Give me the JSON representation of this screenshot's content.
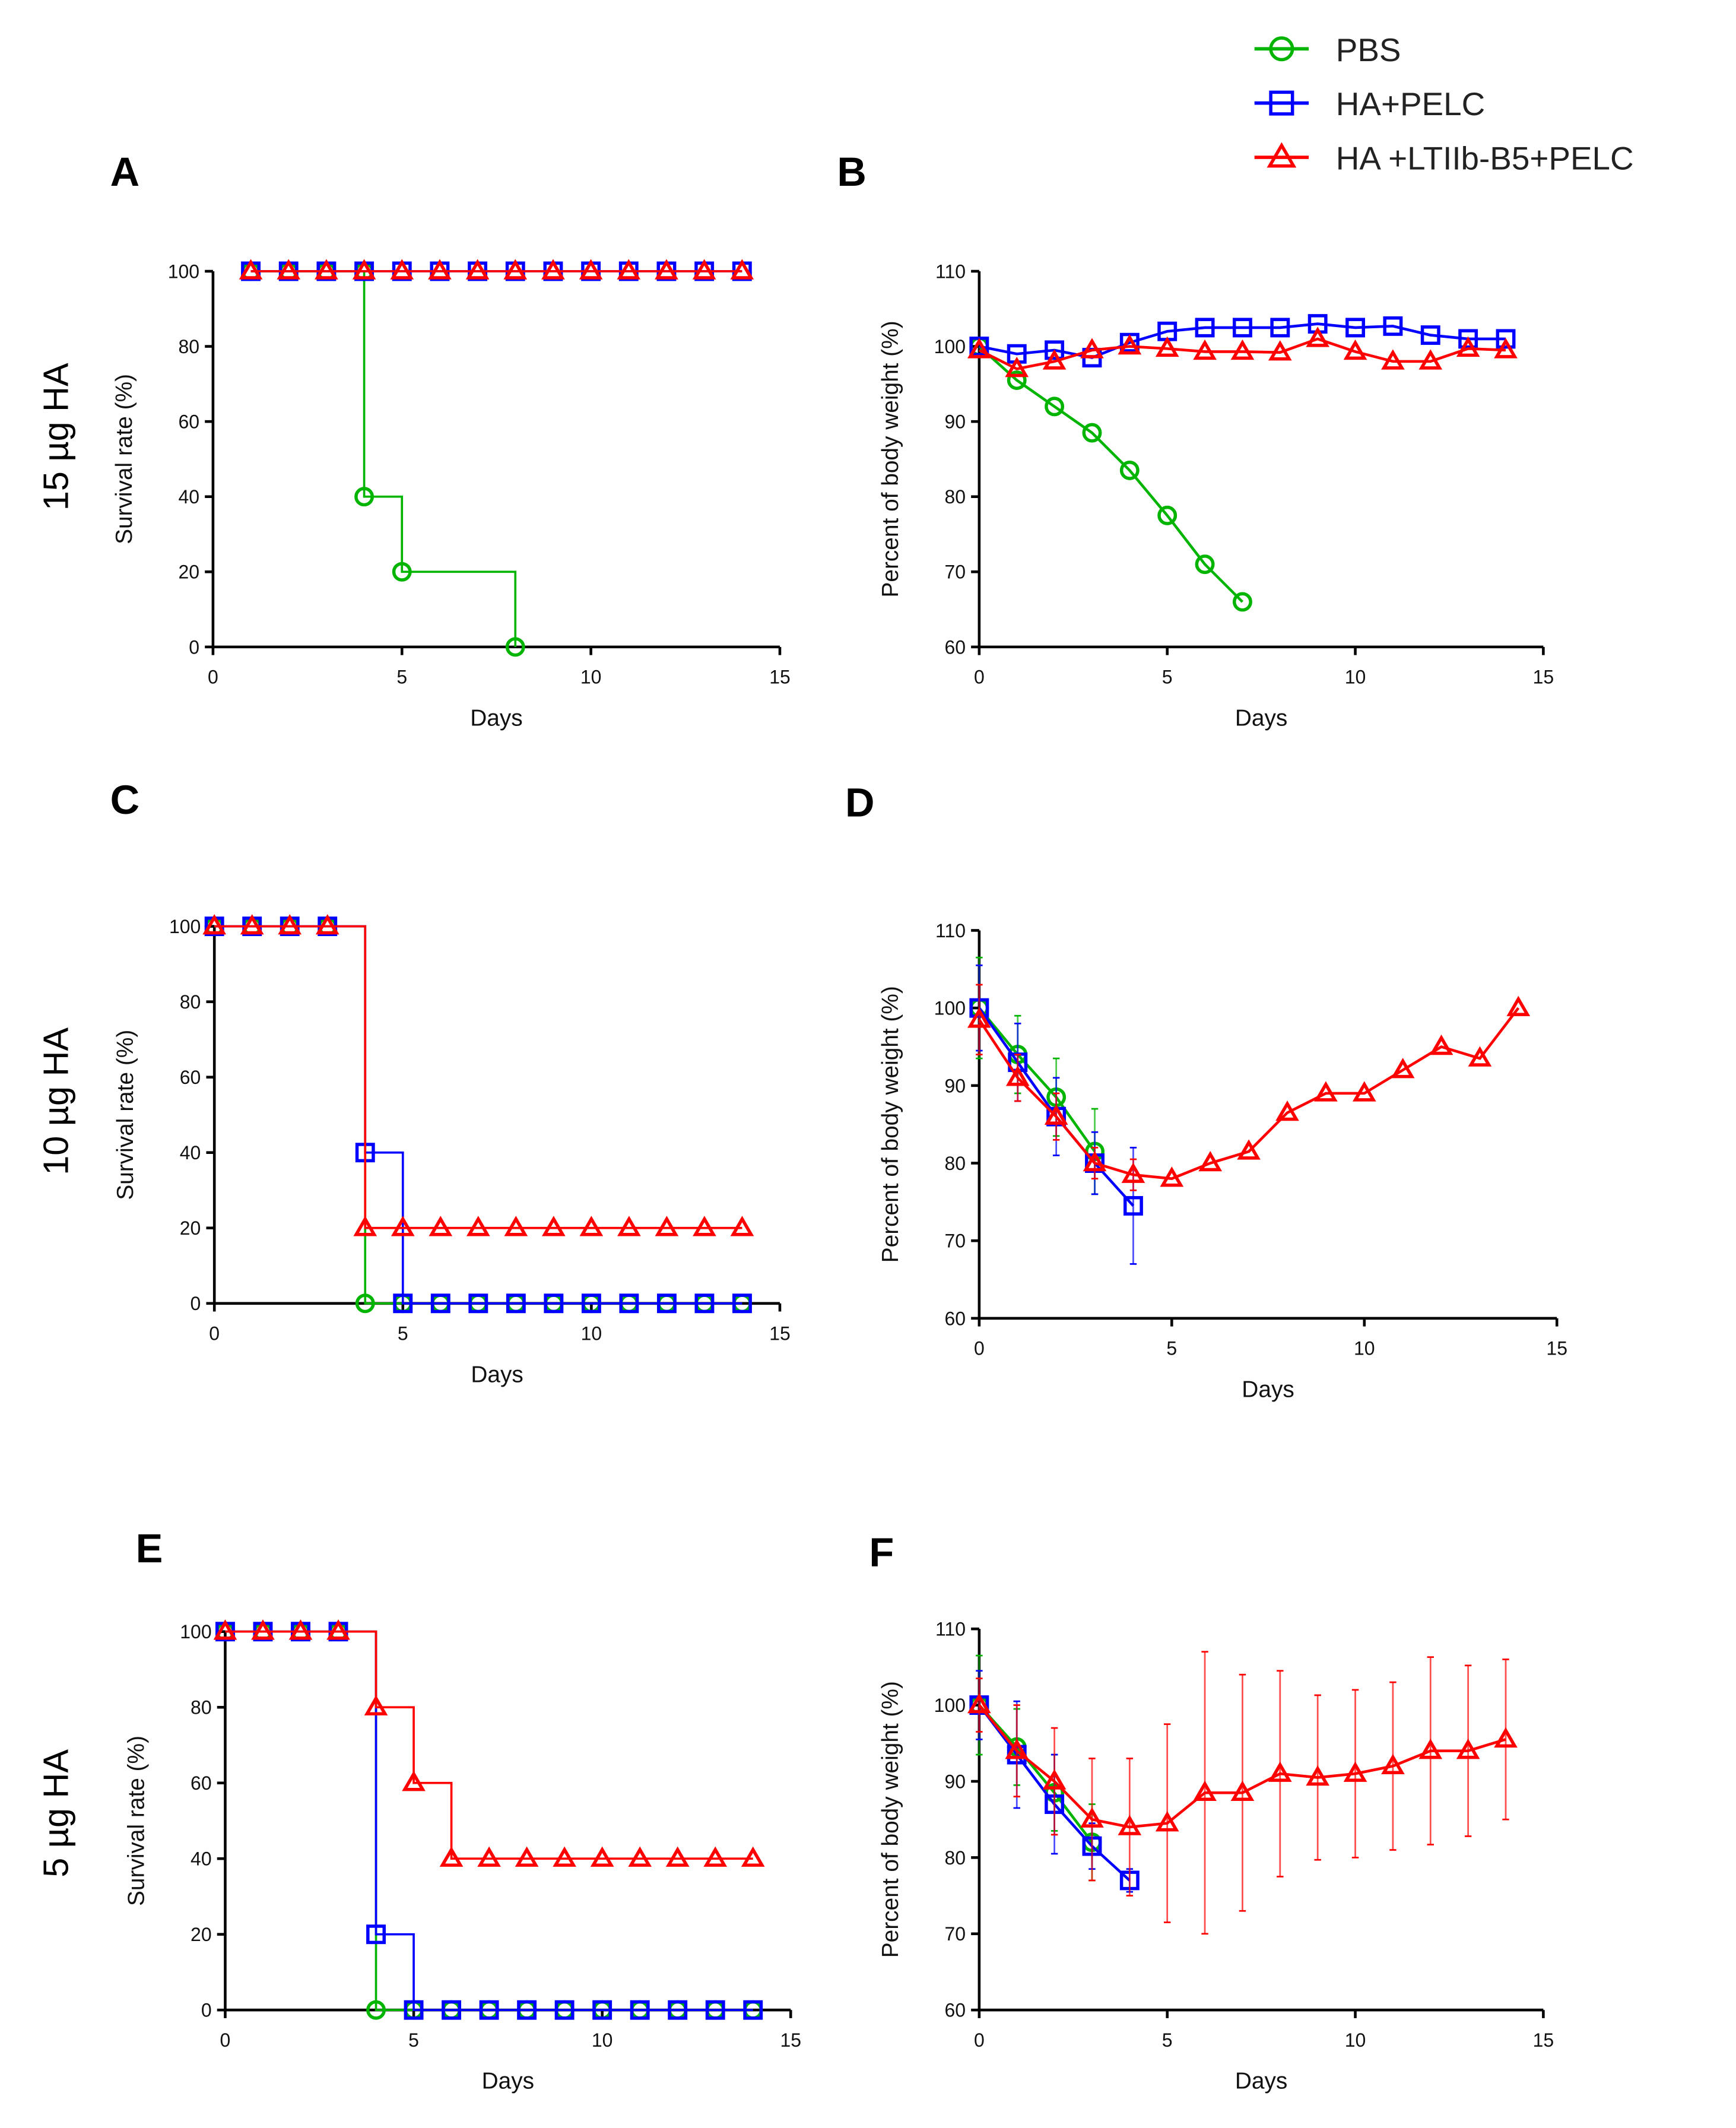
{
  "legend": [
    {
      "name": "PBS",
      "color": "#00b400",
      "marker": "circle"
    },
    {
      "name": "HA+PELC",
      "color": "#0000ff",
      "marker": "square"
    },
    {
      "name": "HA +LTIIb-B5+PELC",
      "color": "#ff0000",
      "marker": "triangle"
    }
  ],
  "row_labels": [
    "15 µg HA",
    "10 µg HA",
    "5 µg HA"
  ],
  "chart_data": [
    {
      "panel": "A",
      "type": "line",
      "step": true,
      "xlabel": "Days",
      "ylabel": "Survival rate (%)",
      "xlim": [
        0,
        15
      ],
      "ylim": [
        0,
        100
      ],
      "xticks": [
        0,
        5,
        10,
        15
      ],
      "yticks": [
        0,
        20,
        40,
        60,
        80,
        100
      ],
      "series": [
        {
          "name": "PBS",
          "x": [
            1,
            2,
            3,
            4,
            4,
            5,
            8
          ],
          "y": [
            100,
            100,
            100,
            100,
            40,
            20,
            0
          ]
        },
        {
          "name": "HA+PELC",
          "x": [
            1,
            2,
            3,
            4,
            5,
            6,
            7,
            8,
            9,
            10,
            11,
            12,
            13,
            14
          ],
          "y": [
            100,
            100,
            100,
            100,
            100,
            100,
            100,
            100,
            100,
            100,
            100,
            100,
            100,
            100
          ]
        },
        {
          "name": "HA +LTIIb-B5+PELC",
          "x": [
            1,
            2,
            3,
            4,
            5,
            6,
            7,
            8,
            9,
            10,
            11,
            12,
            13,
            14
          ],
          "y": [
            100,
            100,
            100,
            100,
            100,
            100,
            100,
            100,
            100,
            100,
            100,
            100,
            100,
            100
          ]
        }
      ]
    },
    {
      "panel": "B",
      "type": "line",
      "step": false,
      "xlabel": "Days",
      "ylabel": "Percent of body weight (%)",
      "xlim": [
        0,
        15
      ],
      "ylim": [
        60,
        110
      ],
      "xticks": [
        0,
        5,
        10,
        15
      ],
      "yticks": [
        60,
        70,
        80,
        90,
        100,
        110
      ],
      "series": [
        {
          "name": "PBS",
          "x": [
            0,
            1,
            2,
            3,
            4,
            5,
            6,
            7
          ],
          "y": [
            100,
            95.5,
            92,
            88.5,
            83.5,
            77.5,
            71,
            66
          ]
        },
        {
          "name": "HA+PELC",
          "x": [
            0,
            1,
            2,
            3,
            4,
            5,
            6,
            7,
            8,
            9,
            10,
            11,
            12,
            13,
            14
          ],
          "y": [
            100,
            99,
            99.5,
            98.5,
            100.5,
            102,
            102.5,
            102.5,
            102.5,
            103,
            102.5,
            102.7,
            101.5,
            101,
            101
          ]
        },
        {
          "name": "HA +LTIIb-B5+PELC",
          "x": [
            0,
            1,
            2,
            3,
            4,
            5,
            6,
            7,
            8,
            9,
            10,
            11,
            12,
            13,
            14
          ],
          "y": [
            99.5,
            97,
            98,
            99.5,
            100,
            99.7,
            99.3,
            99.3,
            99.2,
            101,
            99.3,
            98,
            98,
            99.7,
            99.5
          ]
        }
      ]
    },
    {
      "panel": "C",
      "type": "line",
      "step": true,
      "xlabel": "Days",
      "ylabel": "Survival rate (%)",
      "xlim": [
        0,
        15
      ],
      "ylim": [
        0,
        100
      ],
      "xticks": [
        0,
        5,
        10,
        15
      ],
      "yticks": [
        0,
        20,
        40,
        60,
        80,
        100
      ],
      "series": [
        {
          "name": "PBS",
          "x": [
            0,
            1,
            2,
            3,
            4,
            5,
            6,
            7,
            8,
            9,
            10,
            11,
            12,
            13,
            14
          ],
          "y": [
            100,
            100,
            100,
            100,
            0,
            0,
            0,
            0,
            0,
            0,
            0,
            0,
            0,
            0,
            0
          ]
        },
        {
          "name": "HA+PELC",
          "x": [
            0,
            1,
            2,
            3,
            4,
            5,
            6,
            7,
            8,
            9,
            10,
            11,
            12,
            13,
            14
          ],
          "y": [
            100,
            100,
            100,
            100,
            40,
            0,
            0,
            0,
            0,
            0,
            0,
            0,
            0,
            0,
            0
          ]
        },
        {
          "name": "HA +LTIIb-B5+PELC",
          "x": [
            0,
            1,
            2,
            3,
            4,
            5,
            6,
            7,
            8,
            9,
            10,
            11,
            12,
            13,
            14
          ],
          "y": [
            100,
            100,
            100,
            100,
            20,
            20,
            20,
            20,
            20,
            20,
            20,
            20,
            20,
            20,
            20
          ]
        }
      ]
    },
    {
      "panel": "D",
      "type": "line",
      "step": false,
      "xlabel": "Days",
      "ylabel": "Percent of body weight (%)",
      "xlim": [
        0,
        15
      ],
      "ylim": [
        60,
        110
      ],
      "xticks": [
        0,
        5,
        10,
        15
      ],
      "yticks": [
        60,
        70,
        80,
        90,
        100,
        110
      ],
      "series": [
        {
          "name": "PBS",
          "x": [
            0,
            1,
            2,
            3
          ],
          "y": [
            100,
            94,
            88.5,
            81.5
          ],
          "err": [
            6.5,
            5,
            5,
            5.5
          ]
        },
        {
          "name": "HA+PELC",
          "x": [
            0,
            1,
            2,
            3,
            4
          ],
          "y": [
            100,
            93,
            86,
            80,
            74.5
          ],
          "err": [
            5.5,
            5,
            5,
            4,
            7.5
          ]
        },
        {
          "name": "HA +LTIIb-B5+PELC",
          "x": [
            0,
            1,
            2,
            3,
            4,
            5,
            6,
            7,
            8,
            9,
            10,
            11,
            12,
            13,
            14
          ],
          "y": [
            98.5,
            91,
            86,
            80,
            78.5,
            78,
            80,
            81.5,
            86.5,
            89,
            89,
            92,
            95,
            93.5,
            100
          ],
          "err": [
            4.5,
            3,
            3,
            2,
            2,
            0,
            0,
            0,
            0,
            0,
            0,
            0,
            0,
            0,
            0
          ]
        }
      ]
    },
    {
      "panel": "E",
      "type": "line",
      "step": true,
      "xlabel": "Days",
      "ylabel": "Survival rate (%)",
      "xlim": [
        0,
        15
      ],
      "ylim": [
        0,
        100
      ],
      "xticks": [
        0,
        5,
        10,
        15
      ],
      "yticks": [
        0,
        20,
        40,
        60,
        80,
        100
      ],
      "series": [
        {
          "name": "PBS",
          "x": [
            0,
            1,
            2,
            3,
            4,
            5,
            6,
            7,
            8,
            9,
            10,
            11,
            12,
            13,
            14
          ],
          "y": [
            100,
            100,
            100,
            100,
            0,
            0,
            0,
            0,
            0,
            0,
            0,
            0,
            0,
            0,
            0
          ]
        },
        {
          "name": "HA+PELC",
          "x": [
            0,
            1,
            2,
            3,
            4,
            5,
            6,
            7,
            8,
            9,
            10,
            11,
            12,
            13,
            14
          ],
          "y": [
            100,
            100,
            100,
            100,
            20,
            0,
            0,
            0,
            0,
            0,
            0,
            0,
            0,
            0,
            0
          ]
        },
        {
          "name": "HA +LTIIb-B5+PELC",
          "x": [
            0,
            1,
            2,
            3,
            4,
            5,
            6,
            7,
            8,
            9,
            10,
            11,
            12,
            13,
            14
          ],
          "y": [
            100,
            100,
            100,
            100,
            80,
            60,
            40,
            40,
            40,
            40,
            40,
            40,
            40,
            40,
            40
          ]
        }
      ]
    },
    {
      "panel": "F",
      "type": "line",
      "step": false,
      "xlabel": "Days",
      "ylabel": "Percent of body weight (%)",
      "xlim": [
        0,
        15
      ],
      "ylim": [
        60,
        110
      ],
      "xticks": [
        0,
        5,
        10,
        15
      ],
      "yticks": [
        60,
        70,
        80,
        90,
        100,
        110
      ],
      "series": [
        {
          "name": "PBS",
          "x": [
            0,
            1,
            2,
            3
          ],
          "y": [
            100,
            94.5,
            88.5,
            82
          ],
          "err": [
            6.5,
            5,
            5,
            5
          ]
        },
        {
          "name": "HA+PELC",
          "x": [
            0,
            1,
            2,
            3,
            4
          ],
          "y": [
            100,
            93.5,
            87,
            81.5,
            77
          ],
          "err": [
            4.5,
            7,
            6.5,
            3,
            1.5
          ]
        },
        {
          "name": "HA +LTIIb-B5+PELC",
          "x": [
            0,
            1,
            2,
            3,
            4,
            5,
            6,
            7,
            8,
            9,
            10,
            11,
            12,
            13,
            14
          ],
          "y": [
            100,
            94,
            90,
            85,
            84,
            84.5,
            88.5,
            88.5,
            91,
            90.5,
            91,
            92,
            94,
            94,
            95.5
          ],
          "err": [
            3.5,
            6,
            7,
            8,
            9,
            13,
            18.5,
            15.5,
            13.5,
            10.8,
            11,
            11,
            12.3,
            11.2,
            10.5
          ]
        }
      ]
    }
  ]
}
